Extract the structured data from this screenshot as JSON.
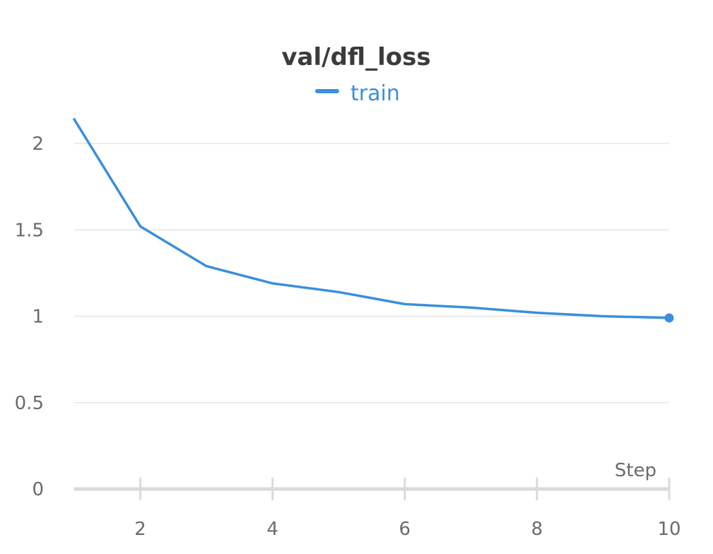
{
  "colors": {
    "series": "#3b8fdc",
    "grid": "#e6e6e6",
    "axis": "#dadada",
    "text": "#6b6b6b",
    "title": "#3b3b3b"
  },
  "chart_data": {
    "type": "line",
    "title": "val/dfl_loss",
    "xlabel": "Step",
    "ylabel": "",
    "xlim": [
      1,
      10
    ],
    "ylim": [
      0,
      2.2
    ],
    "xticks": [
      "2",
      "4",
      "6",
      "8",
      "10"
    ],
    "yticks": [
      "0",
      "0.5",
      "1",
      "1.5",
      "2"
    ],
    "xtick_values": [
      2,
      4,
      6,
      8,
      10
    ],
    "ytick_values": [
      0,
      0.5,
      1,
      1.5,
      2
    ],
    "grid": true,
    "legend": "top-center",
    "series": [
      {
        "name": "train",
        "x": [
          1,
          2,
          3,
          4,
          5,
          6,
          7,
          8,
          9,
          10
        ],
        "values": [
          2.14,
          1.52,
          1.29,
          1.19,
          1.14,
          1.07,
          1.05,
          1.02,
          1.0,
          0.99
        ],
        "end_marker": true
      }
    ]
  }
}
